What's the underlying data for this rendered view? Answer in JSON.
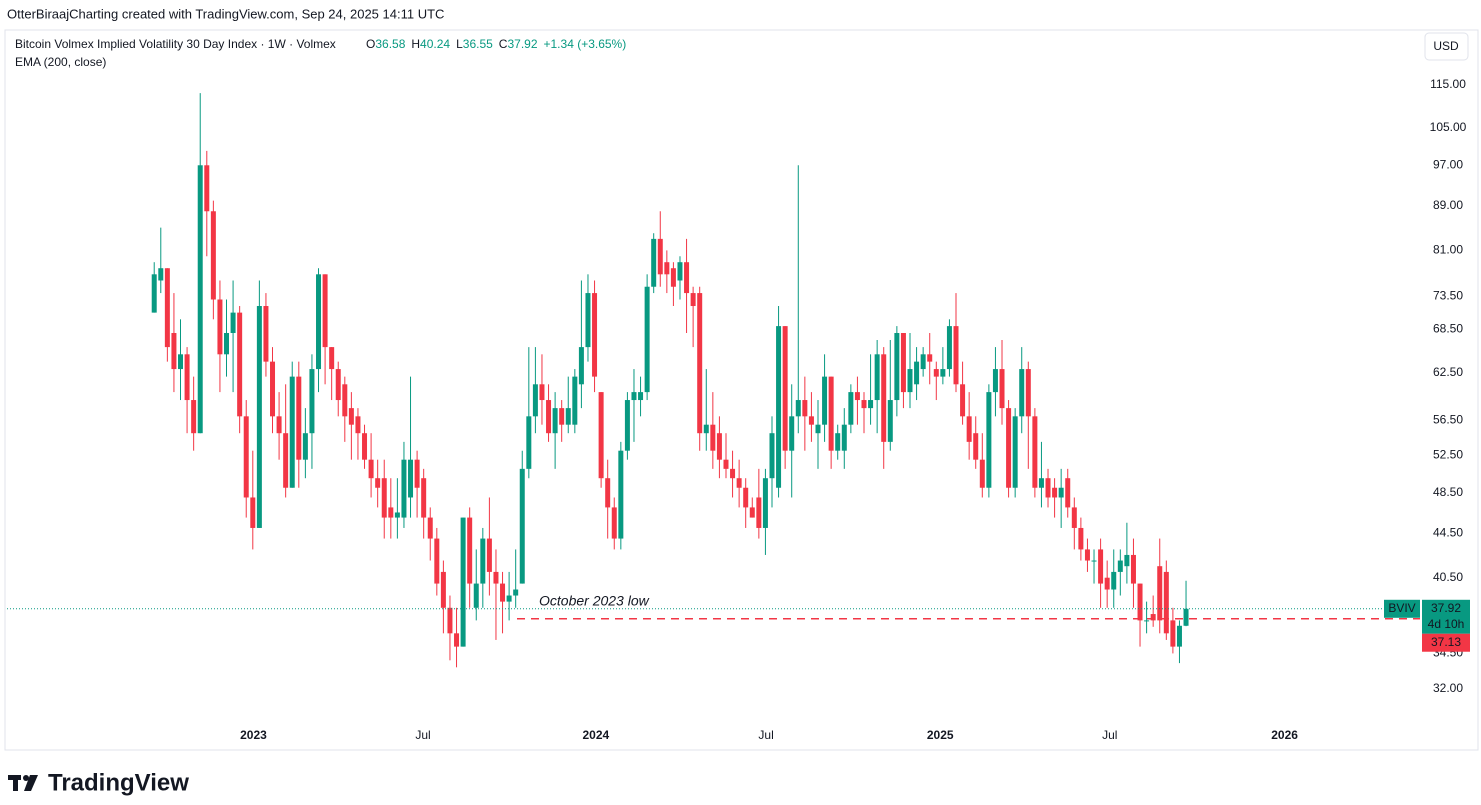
{
  "header": {
    "credit": "OtterBiraajCharting created with TradingView.com, Sep 24, 2025 14:11 UTC",
    "change": "+1.34 (+3.65%)",
    "ohlc_labels": [
      "O",
      "H",
      "L",
      "C"
    ]
  },
  "footer": {
    "brand": "TradingView"
  },
  "chart_data": {
    "type": "candlestick",
    "title": "Bitcoin Volmex Implied Volatility 30 Day Index · 1W · Volmex",
    "indicator": "EMA (200, close)",
    "currency": "USD",
    "symbol": "BVIV",
    "countdown": "4d 10h",
    "up_color": "#089981",
    "down_color": "#f23645",
    "log": true,
    "grid": false,
    "open": [
      71,
      76,
      78,
      68,
      63,
      65,
      59,
      55,
      97,
      88,
      73,
      65,
      68,
      71,
      57,
      48,
      45,
      72,
      64,
      57,
      55,
      49,
      62,
      52,
      55,
      63,
      77,
      66,
      63,
      61,
      58,
      57,
      55,
      52,
      50,
      50,
      47,
      46,
      46,
      48,
      52,
      50,
      46,
      44,
      41,
      38,
      36,
      35,
      46,
      38,
      40,
      44,
      41,
      40,
      38.5,
      39,
      40,
      51,
      57,
      61,
      59,
      55,
      58,
      56,
      56,
      61,
      66,
      74,
      60,
      50,
      47,
      44,
      53,
      59,
      59,
      60,
      75,
      83,
      79,
      78,
      76,
      79,
      74,
      74,
      55,
      56,
      55,
      52,
      51,
      50,
      49,
      47,
      48,
      45,
      50,
      49,
      69,
      53,
      57,
      59,
      57,
      55,
      56,
      62,
      53,
      53,
      56,
      60,
      59,
      58,
      59,
      65,
      54,
      59,
      68,
      60,
      61,
      63,
      65,
      63,
      62,
      63,
      69,
      61,
      57,
      55,
      52,
      49,
      60,
      63,
      58,
      49,
      57,
      63,
      57,
      49,
      50,
      49,
      48,
      50,
      47,
      45,
      43,
      42,
      43,
      40.5,
      39.5,
      41,
      41.5,
      42.5,
      40,
      37,
      37.5,
      41.5,
      41,
      37,
      35,
      36.58
    ],
    "high": [
      79,
      85,
      78,
      74,
      70,
      66,
      62,
      113,
      100,
      90,
      76,
      73,
      76,
      72,
      59,
      53,
      76,
      74,
      66,
      60,
      61,
      64,
      64,
      58,
      65,
      78,
      77,
      66,
      64,
      62,
      60,
      58,
      56,
      55,
      52,
      52,
      50,
      50,
      54,
      62,
      53,
      51,
      47,
      45,
      42,
      39,
      38,
      46,
      47,
      43,
      45,
      48,
      43,
      41,
      41,
      43,
      53,
      66,
      66,
      65,
      61,
      60,
      59,
      62,
      63,
      76,
      77,
      76,
      60,
      52,
      48,
      54,
      60,
      63,
      62,
      77,
      84,
      88,
      81,
      79,
      80,
      83,
      75,
      75,
      63,
      60,
      57,
      55,
      53,
      52,
      50,
      48,
      51,
      51,
      57,
      72,
      69,
      61,
      97,
      62,
      60,
      59,
      65,
      62,
      56,
      58,
      61,
      62,
      60,
      65,
      67,
      66,
      67,
      69,
      68,
      68,
      66,
      66,
      68,
      64,
      66,
      70,
      74,
      64,
      60,
      57,
      55,
      61,
      66,
      67,
      59,
      58,
      66,
      64,
      58,
      54,
      51,
      50,
      51,
      51,
      48,
      46,
      44,
      43,
      44,
      42,
      43,
      43,
      45.5,
      44,
      40,
      38.5,
      39,
      44,
      42,
      38,
      37,
      40.24
    ],
    "low": [
      71,
      74,
      64,
      60,
      59,
      55,
      53,
      55,
      80,
      70,
      60,
      62,
      60,
      55,
      46,
      43,
      45,
      62,
      55,
      52,
      48,
      49,
      49,
      50,
      51,
      60,
      61,
      59,
      57,
      54,
      52,
      52,
      51,
      48,
      47,
      44,
      44,
      44,
      45,
      46,
      46,
      44,
      42,
      39,
      36,
      34,
      33.5,
      35,
      38,
      37,
      38,
      39,
      35.5,
      36,
      37,
      38,
      40,
      50,
      55,
      56,
      54,
      51,
      54,
      55,
      55,
      58,
      64,
      60,
      49,
      44,
      43,
      43,
      52,
      54,
      57,
      59,
      74,
      75,
      74,
      72,
      73,
      68,
      66,
      53,
      53,
      51,
      50,
      50,
      48,
      47,
      45,
      46,
      44,
      42.5,
      47,
      48,
      51,
      48,
      55,
      53,
      54,
      51,
      54,
      51,
      52,
      51,
      55,
      56,
      55,
      56,
      55,
      51,
      53,
      57,
      58,
      58,
      59,
      62,
      61,
      59,
      61,
      62,
      60,
      56,
      52,
      51,
      48,
      48,
      57,
      56,
      48,
      48,
      55,
      51,
      48,
      47,
      47,
      46,
      45,
      46,
      43,
      42,
      41,
      40,
      38,
      38,
      38,
      39,
      40,
      38,
      35,
      36,
      36.5,
      36,
      35.5,
      34.5,
      33.8,
      36.55
    ],
    "close": [
      77,
      78,
      66,
      63,
      65,
      59,
      55,
      97,
      88,
      73,
      65,
      68,
      71,
      57,
      48,
      45,
      72,
      64,
      57,
      55,
      49,
      62,
      52,
      55,
      63,
      77,
      66,
      63,
      59,
      57,
      56,
      55,
      52,
      50,
      49,
      46,
      46,
      46.5,
      52,
      52,
      49,
      46,
      44,
      40,
      38,
      36,
      35,
      46,
      40,
      40,
      44,
      41,
      40,
      38.5,
      39,
      39.5,
      51,
      57,
      61,
      59,
      55,
      58,
      56,
      58,
      62,
      66,
      74,
      62,
      50,
      47,
      44,
      53,
      59,
      60,
      60,
      75,
      83,
      77,
      77,
      75,
      79,
      74,
      72,
      55,
      56,
      53,
      52,
      51,
      50,
      49,
      47,
      46,
      45,
      50,
      55,
      69,
      53,
      57,
      59,
      57,
      56,
      56,
      62,
      53,
      55,
      56,
      60,
      59,
      58,
      59,
      65,
      54,
      59,
      68,
      60,
      63,
      64,
      65,
      64,
      62,
      63,
      69,
      61,
      57,
      54,
      52,
      49,
      60,
      63,
      58,
      49,
      57,
      63,
      57,
      49,
      50,
      48,
      48,
      49,
      47,
      45,
      43,
      42,
      42,
      40,
      39.5,
      41,
      42,
      42.5,
      40,
      37,
      37,
      37,
      37,
      36,
      35,
      36.58,
      37.92
    ],
    "ylim": [
      28,
      130
    ],
    "yticks": [
      {
        "value": 115,
        "label": "115.00"
      },
      {
        "value": 105,
        "label": "105.00"
      },
      {
        "value": 97,
        "label": "97.00"
      },
      {
        "value": 89,
        "label": "89.00"
      },
      {
        "value": 81,
        "label": "81.00"
      },
      {
        "value": 73.5,
        "label": "73.50"
      },
      {
        "value": 68.5,
        "label": "68.50"
      },
      {
        "value": 62.5,
        "label": "62.50"
      },
      {
        "value": 56.5,
        "label": "56.50"
      },
      {
        "value": 52.5,
        "label": "52.50"
      },
      {
        "value": 48.5,
        "label": "48.50"
      },
      {
        "value": 44.5,
        "label": "44.50"
      },
      {
        "value": 40.5,
        "label": "40.50"
      },
      {
        "value": 34.5,
        "label": "34.50"
      },
      {
        "value": 32,
        "label": "32.00"
      }
    ],
    "xlim": [
      -22.4,
      192.6
    ],
    "xticks": [
      {
        "value": 15.1,
        "label": "2023"
      },
      {
        "value": 40.9,
        "label": "Jul"
      },
      {
        "value": 67.2,
        "label": "2024"
      },
      {
        "value": 93.1,
        "label": "Jul"
      },
      {
        "value": 119.6,
        "label": "2025"
      },
      {
        "value": 145.4,
        "label": "Jul"
      },
      {
        "value": 172,
        "label": "2026"
      }
    ],
    "annotation": {
      "text": "October 2023 low",
      "value": 37.13,
      "color": "#f23645"
    }
  }
}
